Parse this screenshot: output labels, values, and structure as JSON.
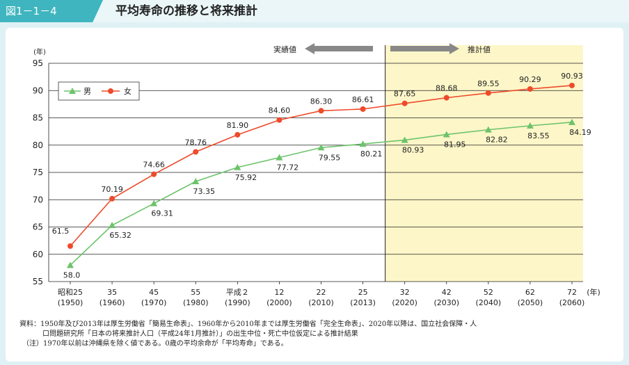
{
  "figure": {
    "number": "図1－1－4",
    "title": "平均寿命の推移と将来推計"
  },
  "annotations": {
    "actual": "実績値",
    "projected": "推計値"
  },
  "colors": {
    "male": "#6cc36b",
    "female": "#ee4b2b",
    "projection_bg": "#fdf6c8",
    "tab": "#3fb5bf"
  },
  "chart_data": {
    "type": "line",
    "ylabel": "(年)",
    "xunit": "(年)",
    "ylim": [
      55,
      95
    ],
    "yticks": [
      "55",
      "60",
      "65",
      "70",
      "75",
      "80",
      "85",
      "90",
      "95"
    ],
    "grid": true,
    "legend_position": "top-left",
    "projection_start_category": "32",
    "categories": [
      "昭和25",
      "35",
      "45",
      "55",
      "平成２",
      "12",
      "22",
      "25",
      "32",
      "42",
      "52",
      "62",
      "72"
    ],
    "categories_western": [
      "(1950)",
      "(1960)",
      "(1970)",
      "(1980)",
      "(1990)",
      "(2000)",
      "(2010)",
      "(2013)",
      "(2020)",
      "(2030)",
      "(2040)",
      "(2050)",
      "(2060)"
    ],
    "series": [
      {
        "name": "男",
        "values": [
          58.0,
          65.32,
          69.31,
          73.35,
          75.92,
          77.72,
          79.55,
          80.21,
          80.93,
          81.95,
          82.82,
          83.55,
          84.19
        ],
        "labels": [
          "58.0",
          "65.32",
          "69.31",
          "73.35",
          "75.92",
          "77.72",
          "79.55",
          "80.21",
          "80.93",
          "81.95",
          "82.82",
          "83.55",
          "84.19"
        ]
      },
      {
        "name": "女",
        "values": [
          61.5,
          70.19,
          74.66,
          78.76,
          81.9,
          84.6,
          86.3,
          86.61,
          87.65,
          88.68,
          89.55,
          90.29,
          90.93
        ],
        "labels": [
          "61.5",
          "70.19",
          "74.66",
          "78.76",
          "81.90",
          "84.60",
          "86.30",
          "86.61",
          "87.65",
          "88.68",
          "89.55",
          "90.29",
          "90.93"
        ]
      }
    ]
  },
  "notes": {
    "line1": "資料：1950年及び2013年は厚生労働省「簡易生命表」、1960年から2010年までは厚生労働省「完全生命表」、2020年以降は、国立社会保障・人",
    "line2": "口問題研究所「日本の将来推計人口（平成24年1月推計）」の出生中位・死亡中位仮定による推計結果",
    "line3": "（注）1970年以前は沖縄県を除く値である。0歳の平均余命が「平均寿命」である。"
  }
}
